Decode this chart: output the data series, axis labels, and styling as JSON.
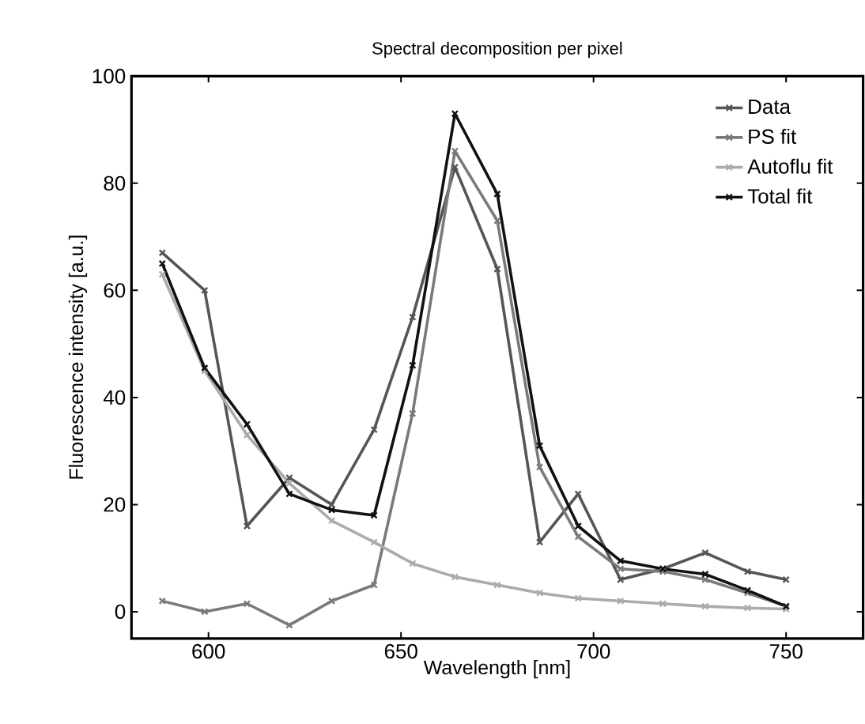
{
  "chart_data": {
    "type": "line",
    "title": "Spectral decomposition per pixel",
    "xlabel": "Wavelength [nm]",
    "ylabel": "Fluorescence intensity [a.u.]",
    "x": [
      588,
      599,
      610,
      621,
      632,
      643,
      653,
      664,
      675,
      686,
      696,
      707,
      718,
      729,
      740,
      750
    ],
    "xlim": [
      580,
      770
    ],
    "ylim": [
      -5,
      100
    ],
    "xticks": [
      600,
      650,
      700,
      750
    ],
    "yticks": [
      0,
      20,
      40,
      60,
      80,
      100
    ],
    "series": [
      {
        "name": "Data",
        "color": "#555555",
        "values": [
          67,
          60,
          16,
          25,
          20,
          34,
          55,
          83,
          64,
          13,
          22,
          6,
          8,
          11,
          7.5,
          6
        ]
      },
      {
        "name": "PS fit",
        "color": "#7a7a7a",
        "values": [
          2,
          0,
          1.5,
          -2.5,
          2,
          5,
          37,
          86,
          73,
          27,
          14,
          8,
          7.5,
          6,
          3.5,
          1
        ]
      },
      {
        "name": "Autoflu fit",
        "color": "#ababab",
        "values": [
          63,
          45,
          33,
          24,
          17,
          13,
          9,
          6.5,
          5,
          3.5,
          2.5,
          2,
          1.5,
          1,
          0.7,
          0.5
        ]
      },
      {
        "name": "Total fit",
        "color": "#111111",
        "values": [
          65,
          45.5,
          35,
          22,
          19,
          18,
          46,
          93,
          78,
          31,
          16,
          9.5,
          8,
          7,
          4,
          1
        ]
      }
    ],
    "marker": "cross",
    "line_style": "solid",
    "legend": "top right",
    "grid": false
  }
}
